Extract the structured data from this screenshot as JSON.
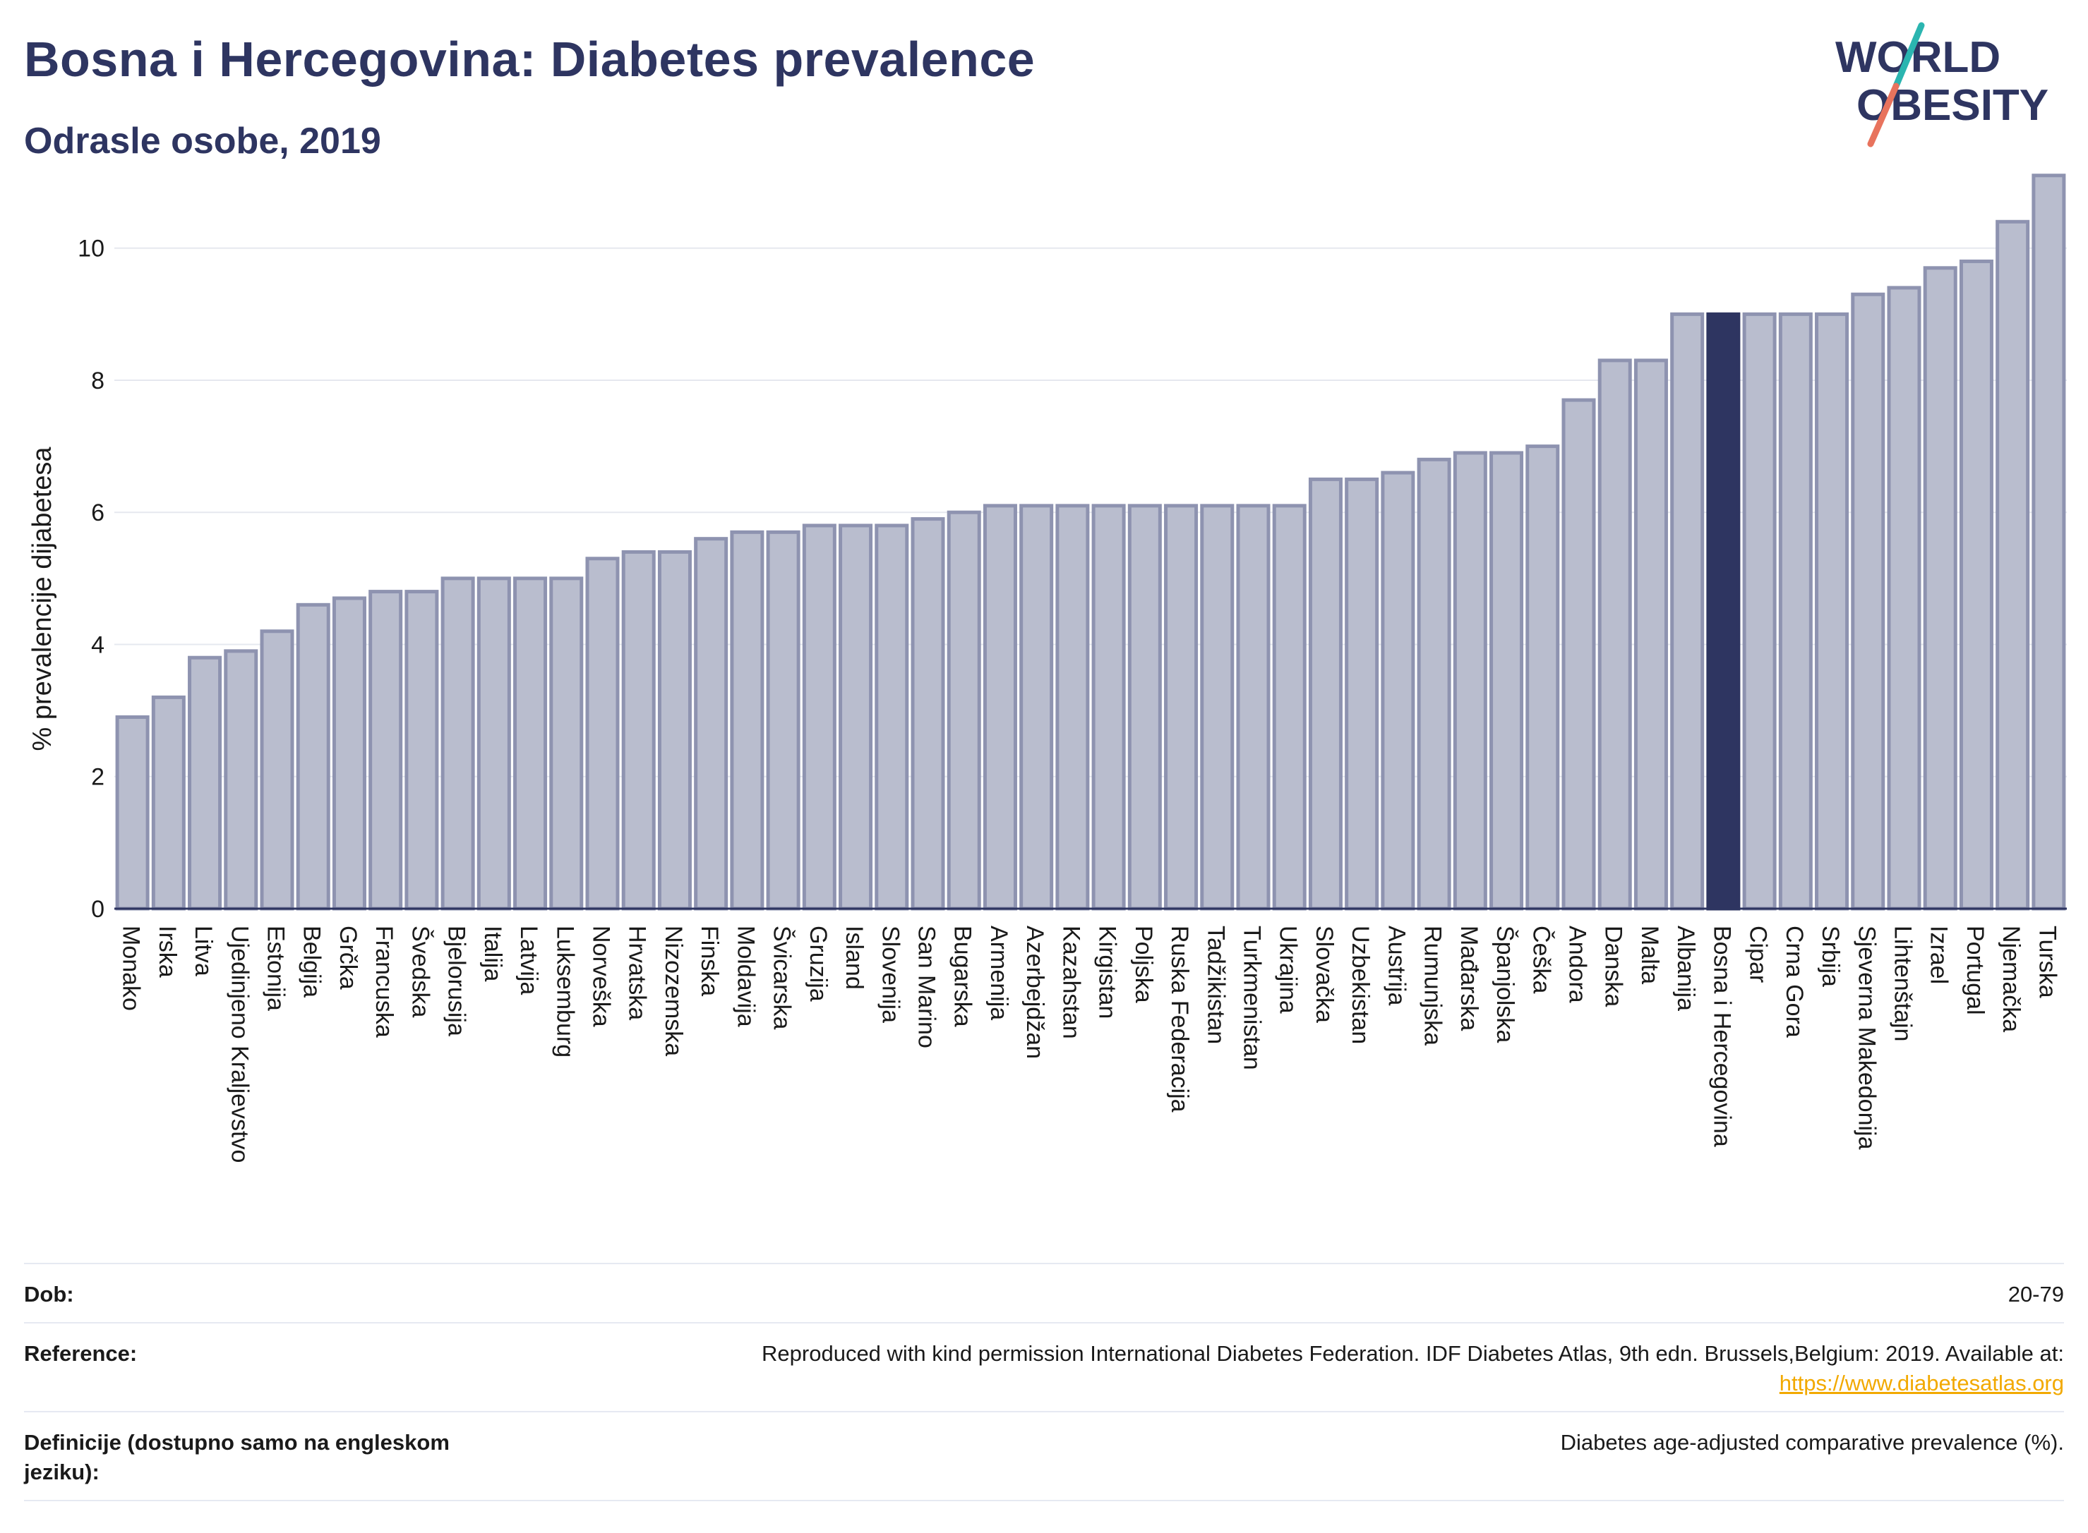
{
  "header": {
    "title": "Bosna i Hercegovina: Diabetes prevalence",
    "subtitle": "Odrasle osobe, 2019"
  },
  "logo": {
    "line1": "WORLD",
    "line2": "OBESITY",
    "colors": {
      "text": "#2e3561",
      "slash_top": "#2bb5b0",
      "slash_bottom": "#e8735d"
    }
  },
  "colors": {
    "bar_fill": "#b9bdce",
    "bar_stroke": "#8e93b0",
    "highlight": "#2e3561",
    "grid": "#e6e8ef",
    "text_dark": "#2e3561"
  },
  "chart_data": {
    "type": "bar",
    "title": "Bosna i Hercegovina: Diabetes prevalence",
    "subtitle": "Odrasle osobe, 2019",
    "ylabel": "% prevalencije dijabetesa",
    "xlabel": "",
    "ylim": [
      0,
      11.3
    ],
    "yticks": [
      0,
      2,
      4,
      6,
      8,
      10
    ],
    "grid": true,
    "highlight": "Bosna i Hercegovina",
    "categories": [
      "Monako",
      "Irska",
      "Litva",
      "Ujedinjeno Kraljevstvo",
      "Estonija",
      "Belgija",
      "Grčka",
      "Francuska",
      "Švedska",
      "Bjelorusija",
      "Italija",
      "Latvija",
      "Luksemburg",
      "Norveška",
      "Hrvatska",
      "Nizozemska",
      "Finska",
      "Moldavija",
      "Švicarska",
      "Gruzija",
      "Island",
      "Slovenija",
      "San Marino",
      "Bugarska",
      "Armenija",
      "Azerbejdžan",
      "Kazahstan",
      "Kirgistan",
      "Poljska",
      "Ruska Federacija",
      "Tadžikistan",
      "Turkmenistan",
      "Ukrajina",
      "Slovačka",
      "Uzbekistan",
      "Austrija",
      "Rumunjska",
      "Mađarska",
      "Španjolska",
      "Češka",
      "Andora",
      "Danska",
      "Malta",
      "Albanija",
      "Bosna i Hercegovina",
      "Cipar",
      "Crna Gora",
      "Srbija",
      "Sjeverna Makedonija",
      "Lihtenštajn",
      "Izrael",
      "Portugal",
      "Njemačka",
      "Turska"
    ],
    "values": [
      2.9,
      3.2,
      3.8,
      3.9,
      4.2,
      4.6,
      4.7,
      4.8,
      4.8,
      5.0,
      5.0,
      5.0,
      5.0,
      5.3,
      5.4,
      5.4,
      5.6,
      5.7,
      5.7,
      5.8,
      5.8,
      5.8,
      5.9,
      6.0,
      6.1,
      6.1,
      6.1,
      6.1,
      6.1,
      6.1,
      6.1,
      6.1,
      6.1,
      6.5,
      6.5,
      6.6,
      6.8,
      6.9,
      6.9,
      7.0,
      7.7,
      8.3,
      8.3,
      9.0,
      9.0,
      9.0,
      9.0,
      9.0,
      9.3,
      9.4,
      9.7,
      9.8,
      10.4,
      11.1
    ]
  },
  "info": {
    "age_label": "Dob:",
    "age_value": "20-79",
    "reference_label": "Reference:",
    "reference_text": "Reproduced with kind permission International Diabetes Federation. IDF Diabetes Atlas, 9th edn. Brussels,Belgium: 2019. Available at:",
    "reference_link": "https://www.diabetesatlas.org",
    "definition_label": "Definicije (dostupno samo na engleskom jeziku):",
    "definition_value": "Diabetes age-adjusted comparative prevalence (%)."
  }
}
